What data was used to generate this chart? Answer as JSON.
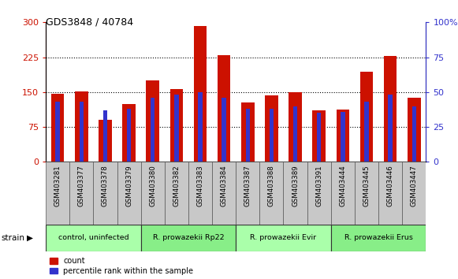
{
  "title": "GDS3848 / 40784",
  "samples": [
    "GSM403281",
    "GSM403377",
    "GSM403378",
    "GSM403379",
    "GSM403380",
    "GSM403382",
    "GSM403383",
    "GSM403384",
    "GSM403387",
    "GSM403388",
    "GSM403389",
    "GSM403391",
    "GSM403444",
    "GSM403445",
    "GSM403446",
    "GSM403447"
  ],
  "red_values": [
    147,
    152,
    90,
    125,
    175,
    157,
    292,
    230,
    128,
    143,
    150,
    110,
    112,
    193,
    228,
    138
  ],
  "blue_values": [
    43,
    43,
    37,
    38,
    46,
    48,
    50,
    46,
    38,
    38,
    40,
    35,
    36,
    43,
    48,
    40
  ],
  "groups": [
    {
      "label": "control, uninfected",
      "start": 0,
      "end": 4
    },
    {
      "label": "R. prowazekii Rp22",
      "start": 4,
      "end": 8
    },
    {
      "label": "R. prowazekii Evir",
      "start": 8,
      "end": 12
    },
    {
      "label": "R. prowazekii Erus",
      "start": 12,
      "end": 16
    }
  ],
  "left_ylim": [
    0,
    300
  ],
  "right_ylim": [
    0,
    100
  ],
  "left_yticks": [
    0,
    75,
    150,
    225,
    300
  ],
  "right_yticks": [
    0,
    25,
    50,
    75,
    100
  ],
  "left_yticklabels": [
    "0",
    "75",
    "150",
    "225",
    "300"
  ],
  "right_yticklabels": [
    "0",
    "25",
    "50",
    "75",
    "100%"
  ],
  "red_color": "#cc1100",
  "blue_color": "#3333cc",
  "tick_label_bg": "#c8c8c8",
  "legend_count": "count",
  "legend_percentile": "percentile rank within the sample",
  "strain_label": "strain",
  "group_colors": [
    "#aaffaa",
    "#88ee88",
    "#aaffaa",
    "#88ee88"
  ],
  "bar_width": 0.55,
  "blue_bar_width": 0.18
}
